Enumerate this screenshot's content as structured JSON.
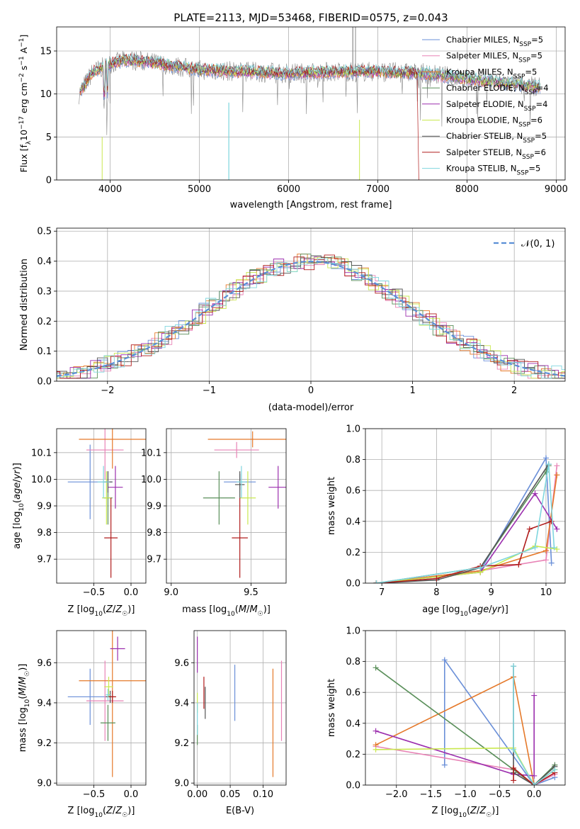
{
  "title": "PLATE=2113, MJD=53468, FIBERID=0575, z=0.043",
  "colors": {
    "Chabrier MILES": "#6a8fd8",
    "Salpeter MILES": "#e883b6",
    "Kroupa MILES": "#e5792a",
    "Chabrier ELODIE": "#5a8f5a",
    "Salpeter ELODIE": "#9c2fae",
    "Kroupa ELODIE": "#c9e84f",
    "Chabrier STELIB": "#555555",
    "Salpeter STELIB": "#b01c1c",
    "Kroupa STELIB": "#7fd6de",
    "gauss": "#5b8fd6"
  },
  "chart_data": [
    {
      "id": "spectrum",
      "type": "line",
      "xlabel": "wavelength [Angstrom, rest frame]",
      "ylabel": "Flux [f_λ10^{-17} erg cm^{-2} s^{-1} A^{-1}]",
      "xlim": [
        3400,
        9100
      ],
      "ylim": [
        0,
        17.8
      ],
      "xticks": [
        4000,
        5000,
        6000,
        7000,
        8000,
        9000
      ],
      "yticks": [
        0,
        5,
        10,
        15
      ],
      "legend_position": "top-right",
      "series": [
        {
          "name": "Chabrier MILES",
          "nssp": 5
        },
        {
          "name": "Salpeter MILES",
          "nssp": 5
        },
        {
          "name": "Kroupa MILES",
          "nssp": 5
        },
        {
          "name": "Chabrier ELODIE",
          "nssp": 4
        },
        {
          "name": "Salpeter ELODIE",
          "nssp": 4
        },
        {
          "name": "Kroupa ELODIE",
          "nssp": 6
        },
        {
          "name": "Chabrier STELIB",
          "nssp": 5
        },
        {
          "name": "Salpeter STELIB",
          "nssp": 6
        },
        {
          "name": "Kroupa STELIB",
          "nssp": 5
        }
      ],
      "continuum": [
        [
          3650,
          10
        ],
        [
          3800,
          12.5
        ],
        [
          4000,
          13.5
        ],
        [
          4200,
          14
        ],
        [
          4500,
          13.6
        ],
        [
          5000,
          12.8
        ],
        [
          5500,
          12.6
        ],
        [
          6000,
          12.4
        ],
        [
          6500,
          12.6
        ],
        [
          7000,
          12.6
        ],
        [
          7500,
          12.4
        ],
        [
          8000,
          11.8
        ],
        [
          8500,
          11.2
        ],
        [
          8800,
          10.8
        ]
      ]
    },
    {
      "id": "residuals",
      "type": "line",
      "xlabel": "(data-model)/error",
      "ylabel": "Normed distribution",
      "xlim": [
        -2.5,
        2.5
      ],
      "ylim": [
        0,
        0.51
      ],
      "xticks": [
        -2,
        -1,
        0,
        1,
        2
      ],
      "yticks": [
        0.0,
        0.1,
        0.2,
        0.3,
        0.4,
        0.5
      ],
      "legend": "𝒩(0, 1)",
      "legend_position": "top-right"
    },
    {
      "id": "age_vs_Z",
      "type": "scatter",
      "xlabel": "Z [log10(Z/Z☉)]",
      "ylabel": "age  [log10(age/yr)]",
      "xlim": [
        -1.0,
        0.2
      ],
      "ylim": [
        9.61,
        10.19
      ],
      "xticks": [
        -0.5,
        0.0
      ],
      "yticks": [
        9.7,
        9.8,
        9.9,
        10.0,
        10.1
      ],
      "points": [
        {
          "model": "Chabrier MILES",
          "x": -0.55,
          "xerr": 0.3,
          "y": 9.99,
          "yerr": 0.14
        },
        {
          "model": "Salpeter MILES",
          "x": -0.35,
          "xerr": 0.25,
          "y": 10.11,
          "yerr": 0.11
        },
        {
          "model": "Kroupa MILES",
          "x": -0.25,
          "xerr": 0.45,
          "y": 10.15,
          "yerr": 0.11
        },
        {
          "model": "Chabrier ELODIE",
          "x": -0.31,
          "xerr": 0.06,
          "y": 9.93,
          "yerr": 0.1
        },
        {
          "model": "Salpeter ELODIE",
          "x": -0.21,
          "xerr": 0.1,
          "y": 9.97,
          "yerr": 0.08
        },
        {
          "model": "Kroupa ELODIE",
          "x": -0.33,
          "xerr": 0.06,
          "y": 9.93,
          "yerr": 0.1
        },
        {
          "model": "Chabrier STELIB",
          "x": -0.31,
          "xerr": 0.06,
          "y": 9.99,
          "yerr": 0.04
        },
        {
          "model": "Salpeter STELIB",
          "x": -0.27,
          "xerr": 0.09,
          "y": 9.78,
          "yerr": 0.15
        },
        {
          "model": "Kroupa STELIB",
          "x": -0.37,
          "xerr": 0.08,
          "y": 9.99,
          "yerr": 0.06
        }
      ]
    },
    {
      "id": "age_vs_mass",
      "type": "scatter",
      "xlabel": "mass [log10(M/M☉)]",
      "ylabel": "",
      "xlim": [
        8.97,
        9.72
      ],
      "ylim": [
        9.61,
        10.19
      ],
      "xticks": [
        9.0,
        9.5
      ],
      "yticks": [
        9.7,
        9.8,
        9.9,
        10.0,
        10.1
      ],
      "points": [
        {
          "model": "Chabrier MILES",
          "x": 9.43,
          "xerr": 0.1,
          "y": 9.99,
          "yerr": 0.03
        },
        {
          "model": "Salpeter MILES",
          "x": 9.41,
          "xerr": 0.14,
          "y": 10.11,
          "yerr": 0.03
        },
        {
          "model": "Kroupa MILES",
          "x": 9.51,
          "xerr": 0.28,
          "y": 10.15,
          "yerr": 0.03
        },
        {
          "model": "Chabrier ELODIE",
          "x": 9.3,
          "xerr": 0.1,
          "y": 9.93,
          "yerr": 0.1
        },
        {
          "model": "Salpeter ELODIE",
          "x": 9.67,
          "xerr": 0.06,
          "y": 9.97,
          "yerr": 0.08
        },
        {
          "model": "Kroupa ELODIE",
          "x": 9.48,
          "xerr": 0.05,
          "y": 9.93,
          "yerr": 0.1
        },
        {
          "model": "Chabrier STELIB",
          "x": 9.43,
          "xerr": 0.03,
          "y": 9.98,
          "yerr": 0.05
        },
        {
          "model": "Salpeter STELIB",
          "x": 9.43,
          "xerr": 0.05,
          "y": 9.78,
          "yerr": 0.15
        },
        {
          "model": "Kroupa STELIB",
          "x": 9.44,
          "xerr": 0.03,
          "y": 9.99,
          "yerr": 0.06
        }
      ]
    },
    {
      "id": "mw_vs_age",
      "type": "line",
      "xlabel": "age  [log10(age/yr)]",
      "ylabel": "mass weight",
      "xlim": [
        6.7,
        10.35
      ],
      "ylim": [
        0,
        1.0
      ],
      "xticks": [
        7,
        8,
        9,
        10
      ],
      "yticks": [
        0.0,
        0.2,
        0.4,
        0.6,
        0.8,
        1.0
      ],
      "series": [
        {
          "model": "Chabrier MILES",
          "x": [
            6.9,
            8.8,
            10.0,
            10.1
          ],
          "y": [
            0.0,
            0.08,
            0.81,
            0.13
          ]
        },
        {
          "model": "Salpeter MILES",
          "x": [
            6.9,
            8.8,
            10.0,
            10.2
          ],
          "y": [
            0.0,
            0.08,
            0.15,
            0.76
          ]
        },
        {
          "model": "Kroupa MILES",
          "x": [
            6.9,
            8.8,
            10.0,
            10.2
          ],
          "y": [
            0.0,
            0.08,
            0.21,
            0.7
          ]
        },
        {
          "model": "Chabrier ELODIE",
          "x": [
            6.9,
            8.8,
            10.0,
            10.05
          ],
          "y": [
            0.0,
            0.1,
            0.72,
            0.76
          ]
        },
        {
          "model": "Salpeter ELODIE",
          "x": [
            6.9,
            8.8,
            9.8,
            10.2
          ],
          "y": [
            0.0,
            0.07,
            0.58,
            0.35
          ]
        },
        {
          "model": "Kroupa ELODIE",
          "x": [
            6.9,
            8.8,
            9.8,
            10.2
          ],
          "y": [
            0.0,
            0.07,
            0.24,
            0.22
          ]
        },
        {
          "model": "Chabrier STELIB",
          "x": [
            6.9,
            8.0,
            8.8,
            10.05
          ],
          "y": [
            0.0,
            0.02,
            0.1,
            0.77
          ]
        },
        {
          "model": "Salpeter STELIB",
          "x": [
            6.9,
            8.0,
            8.8,
            9.5,
            9.7,
            10.1
          ],
          "y": [
            0.0,
            0.03,
            0.11,
            0.12,
            0.35,
            0.4
          ]
        },
        {
          "model": "Kroupa STELIB",
          "x": [
            6.9,
            8.8,
            9.8,
            10.05,
            10.15
          ],
          "y": [
            0.0,
            0.1,
            0.23,
            0.77,
            0.23
          ]
        }
      ]
    },
    {
      "id": "mass_vs_Z",
      "type": "scatter",
      "xlabel": "Z [log10(Z/Z☉)]",
      "ylabel": "mass [log10(M/M☉)]",
      "xlim": [
        -1.0,
        0.2
      ],
      "ylim": [
        8.99,
        9.76
      ],
      "xticks": [
        -0.5,
        0.0
      ],
      "yticks": [
        9.0,
        9.2,
        9.4,
        9.6
      ],
      "points": [
        {
          "model": "Chabrier MILES",
          "x": -0.55,
          "xerr": 0.3,
          "y": 9.43,
          "yerr": 0.14
        },
        {
          "model": "Salpeter MILES",
          "x": -0.35,
          "xerr": 0.25,
          "y": 9.41,
          "yerr": 0.2
        },
        {
          "model": "Kroupa MILES",
          "x": -0.25,
          "xerr": 0.45,
          "y": 9.51,
          "yerr": 0.48
        },
        {
          "model": "Chabrier ELODIE",
          "x": -0.31,
          "xerr": 0.1,
          "y": 9.3,
          "yerr": 0.09
        },
        {
          "model": "Salpeter ELODIE",
          "x": -0.18,
          "xerr": 0.1,
          "y": 9.67,
          "yerr": 0.06
        },
        {
          "model": "Kroupa ELODIE",
          "x": -0.3,
          "xerr": 0.06,
          "y": 9.48,
          "yerr": 0.05
        },
        {
          "model": "Chabrier STELIB",
          "x": -0.28,
          "xerr": 0.06,
          "y": 9.43,
          "yerr": 0.03
        },
        {
          "model": "Salpeter STELIB",
          "x": -0.25,
          "xerr": 0.05,
          "y": 9.43,
          "yerr": 0.03
        },
        {
          "model": "Kroupa STELIB",
          "x": -0.31,
          "xerr": 0.03,
          "y": 9.44,
          "yerr": 0.03
        }
      ]
    },
    {
      "id": "mass_vs_ebv",
      "type": "scatter",
      "xlabel": "E(B-V)",
      "ylabel": "",
      "xlim": [
        -0.005,
        0.135
      ],
      "ylim": [
        8.99,
        9.76
      ],
      "xticks": [
        0.0,
        0.05,
        0.1
      ],
      "yticks": [
        9.0,
        9.2,
        9.4,
        9.6
      ],
      "points": [
        {
          "model": "Chabrier MILES",
          "x": 0.057,
          "y": 9.45,
          "yerr": 0.14
        },
        {
          "model": "Salpeter MILES",
          "x": 0.128,
          "y": 9.41,
          "yerr": 0.2
        },
        {
          "model": "Kroupa MILES",
          "x": 0.115,
          "y": 9.3,
          "yerr": 0.27
        },
        {
          "model": "Chabrier ELODIE",
          "x": 0.0,
          "y": 9.24,
          "yerr": 0.05
        },
        {
          "model": "Salpeter ELODIE",
          "x": 0.0,
          "y": 9.64,
          "yerr": 0.09
        },
        {
          "model": "Kroupa ELODIE",
          "x": 0.0,
          "y": 9.4,
          "yerr": 0.05
        },
        {
          "model": "Chabrier STELIB",
          "x": 0.012,
          "y": 9.4,
          "yerr": 0.08
        },
        {
          "model": "Salpeter STELIB",
          "x": 0.01,
          "y": 9.45,
          "yerr": 0.08
        },
        {
          "model": "Kroupa STELIB",
          "x": 0.0,
          "y": 9.32,
          "yerr": 0.08
        }
      ]
    },
    {
      "id": "mw_vs_Z",
      "type": "line",
      "xlabel": "Z [log10(Z/Z☉)]",
      "ylabel": "mass weight",
      "xlim": [
        -2.45,
        0.45
      ],
      "ylim": [
        0,
        1.0
      ],
      "xticks": [
        -2.0,
        -1.5,
        -1.0,
        -0.5,
        0.0
      ],
      "yticks": [
        0.0,
        0.2,
        0.4,
        0.6,
        0.8,
        1.0
      ],
      "series": [
        {
          "model": "Chabrier MILES",
          "x": [
            -1.3,
            -1.3,
            0.0,
            0.3
          ],
          "y": [
            0.13,
            0.81,
            0.0,
            0.05
          ]
        },
        {
          "model": "Salpeter MILES",
          "x": [
            -2.3,
            -0.3,
            0.0,
            0.3
          ],
          "y": [
            0.25,
            0.1,
            0.0,
            0.07
          ]
        },
        {
          "model": "Kroupa MILES",
          "x": [
            -2.3,
            -0.3,
            0.0,
            0.3
          ],
          "y": [
            0.26,
            0.7,
            0.0,
            0.1
          ]
        },
        {
          "model": "Chabrier ELODIE",
          "x": [
            -2.3,
            -0.3,
            0.0,
            0.3
          ],
          "y": [
            0.76,
            0.1,
            0.0,
            0.13
          ]
        },
        {
          "model": "Salpeter ELODIE",
          "x": [
            -2.3,
            -0.3,
            0.0,
            0.0
          ],
          "y": [
            0.35,
            0.07,
            0.06,
            0.58
          ]
        },
        {
          "model": "Kroupa ELODIE",
          "x": [
            -2.3,
            -0.3,
            0.0,
            0.3
          ],
          "y": [
            0.23,
            0.24,
            0.0,
            0.1
          ]
        },
        {
          "model": "Chabrier STELIB",
          "x": [
            -0.3,
            -0.3,
            0.0,
            0.3
          ],
          "y": [
            0.77,
            0.08,
            0.0,
            0.12
          ]
        },
        {
          "model": "Salpeter STELIB",
          "x": [
            -0.3,
            -0.3,
            0.0,
            0.3
          ],
          "y": [
            0.03,
            0.11,
            0.0,
            0.08
          ]
        },
        {
          "model": "Kroupa STELIB",
          "x": [
            -0.3,
            -0.3,
            0.0,
            0.3
          ],
          "y": [
            0.77,
            0.23,
            0.0,
            0.1
          ]
        }
      ]
    }
  ]
}
